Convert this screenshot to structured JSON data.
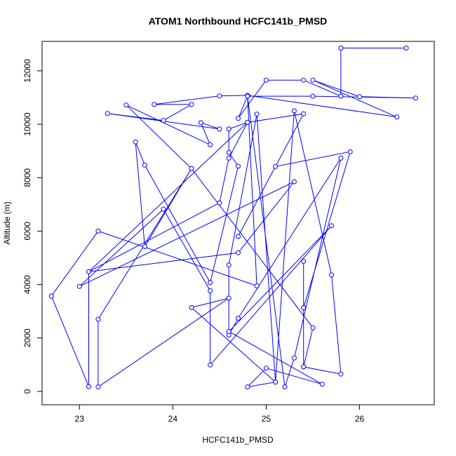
{
  "chart_data": {
    "type": "line",
    "title": "ATOM1 Northbound HCFC141b_PMSD",
    "xlabel": "HCFC141b_PMSD",
    "ylabel": "Altitude (m)",
    "xlim": [
      22.6,
      26.8
    ],
    "ylim": [
      -500,
      13100
    ],
    "xticks": [
      23,
      24,
      25,
      26
    ],
    "yticks": [
      0,
      2000,
      4000,
      6000,
      8000,
      10000,
      12000
    ],
    "line_color": "#0000ff",
    "marker": "open-circle",
    "series": [
      {
        "points": [
          [
            26.5,
            12850
          ],
          [
            25.8,
            12850
          ],
          [
            25.8,
            11050
          ],
          [
            25.4,
            11650
          ],
          [
            25.0,
            11650
          ],
          [
            24.7,
            10220
          ],
          [
            24.8,
            11050
          ],
          [
            25.5,
            11050
          ],
          [
            26.6,
            10980
          ],
          [
            26.0,
            11030
          ],
          [
            25.5,
            11650
          ],
          [
            26.4,
            10270
          ],
          [
            24.8,
            11080
          ],
          [
            24.5,
            11060
          ],
          [
            23.8,
            10740
          ],
          [
            24.2,
            10740
          ],
          [
            23.9,
            10140
          ],
          [
            23.3,
            10400
          ],
          [
            24.5,
            9820
          ],
          [
            24.3,
            10060
          ],
          [
            24.4,
            9230
          ],
          [
            23.5,
            10720
          ],
          [
            24.2,
            8340
          ],
          [
            23.7,
            5420
          ],
          [
            23.6,
            9340
          ],
          [
            23.7,
            8470
          ],
          [
            24.4,
            4070
          ],
          [
            24.7,
            8430
          ],
          [
            24.6,
            8940
          ],
          [
            24.6,
            9820
          ],
          [
            24.8,
            10070
          ],
          [
            24.6,
            8730
          ],
          [
            24.5,
            7060
          ],
          [
            23.1,
            4480
          ],
          [
            24.8,
            10070
          ],
          [
            25.4,
            10390
          ],
          [
            24.7,
            5800
          ],
          [
            25.1,
            8420
          ],
          [
            25.9,
            8970
          ],
          [
            25.4,
            3130
          ],
          [
            25.4,
            4870
          ],
          [
            25.4,
            920
          ],
          [
            25.8,
            650
          ],
          [
            25.7,
            4360
          ],
          [
            25.3,
            10500
          ],
          [
            25.1,
            350
          ],
          [
            24.9,
            10380
          ],
          [
            24.6,
            4730
          ],
          [
            24.6,
            2110
          ],
          [
            24.7,
            2740
          ],
          [
            25.8,
            8730
          ],
          [
            25.3,
            1250
          ],
          [
            25.2,
            170
          ],
          [
            24.8,
            11050
          ],
          [
            24.9,
            3950
          ],
          [
            23.2,
            6000
          ],
          [
            22.7,
            3570
          ],
          [
            23.1,
            180
          ],
          [
            23.1,
            4480
          ],
          [
            24.7,
            5190
          ],
          [
            25.3,
            7850
          ],
          [
            23.0,
            3930
          ],
          [
            23.9,
            6820
          ],
          [
            24.4,
            3770
          ],
          [
            24.4,
            990
          ],
          [
            25.7,
            6200
          ],
          [
            24.6,
            2240
          ],
          [
            25.6,
            270
          ],
          [
            25.0,
            870
          ],
          [
            24.8,
            170
          ],
          [
            25.1,
            350
          ],
          [
            24.2,
            3140
          ],
          [
            24.6,
            3490
          ],
          [
            23.2,
            170
          ],
          [
            23.2,
            2700
          ],
          [
            24.2,
            8340
          ],
          [
            25.5,
            2380
          ],
          [
            25.4,
            920
          ],
          [
            25.4,
            3130
          ]
        ]
      }
    ]
  }
}
